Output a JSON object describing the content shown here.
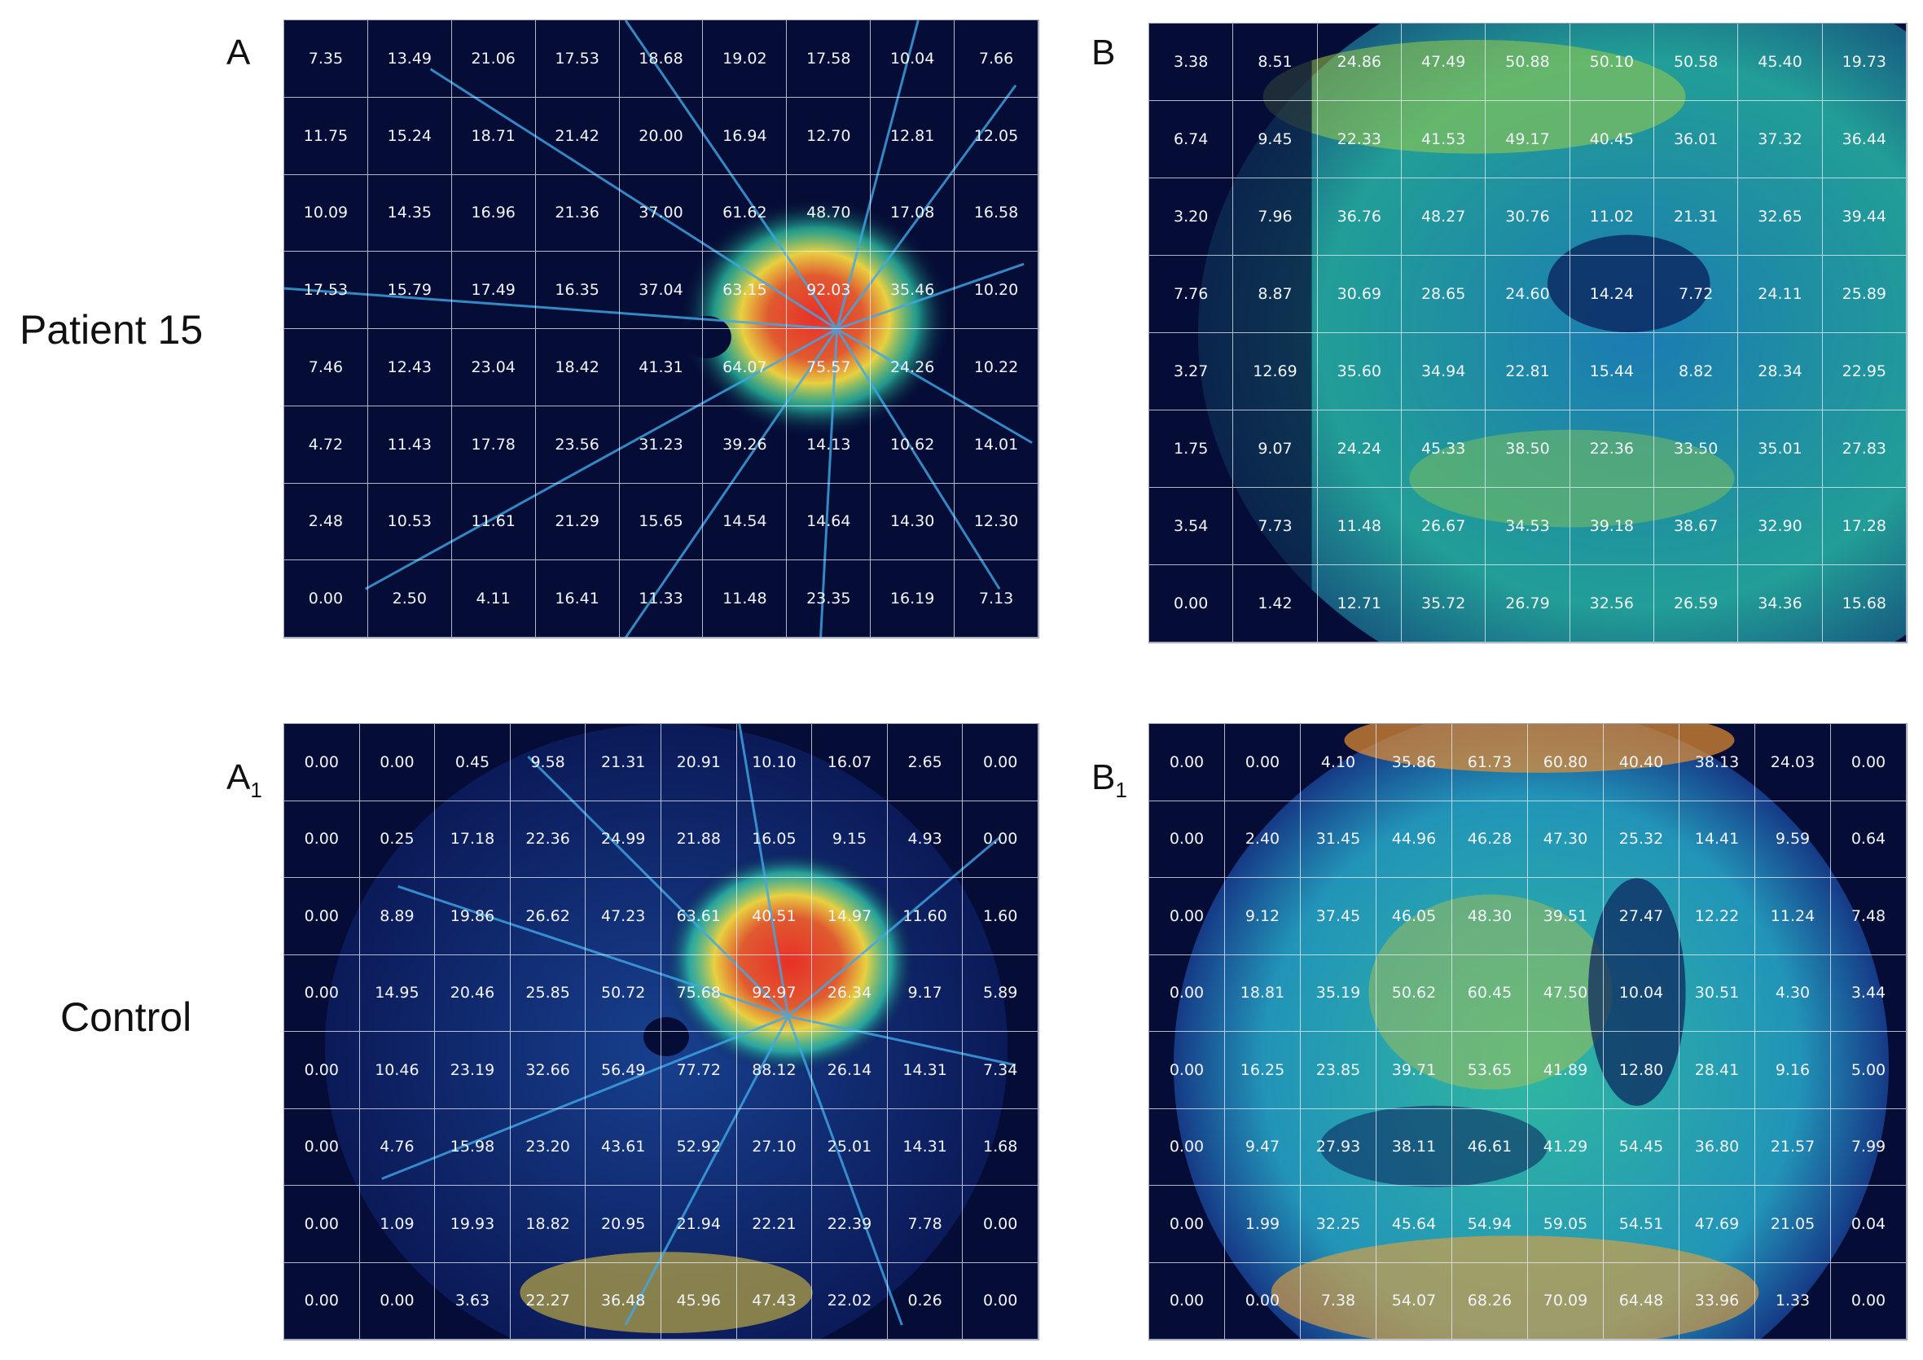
{
  "labels": {
    "row1": "Patient 15",
    "row2": "Control",
    "panel_a": "A",
    "panel_b": "B",
    "panel_a1": "A",
    "panel_a1_sub": "1",
    "panel_b1": "B",
    "panel_b1_sub": "1"
  },
  "colors": {
    "background": "#050d36",
    "vessel_low": "#1e64c8",
    "vessel_mid": "#2fd6b0",
    "vessel_high": "#f0e040",
    "vessel_peak": "#e83028"
  },
  "chart_data": [
    {
      "type": "heatmap",
      "panel": "A",
      "rows": 8,
      "cols": 9,
      "values": [
        [
          "7.35",
          "13.49",
          "21.06",
          "17.53",
          "18.68",
          "19.02",
          "17.58",
          "10.04",
          "7.66"
        ],
        [
          "11.75",
          "15.24",
          "18.71",
          "21.42",
          "20.00",
          "16.94",
          "12.70",
          "12.81",
          "12.05"
        ],
        [
          "10.09",
          "14.35",
          "16.96",
          "21.36",
          "37.00",
          "61.62",
          "48.70",
          "17.08",
          "16.58"
        ],
        [
          "17.53",
          "15.79",
          "17.49",
          "16.35",
          "37.04",
          "63.15",
          "92.03",
          "35.46",
          "10.20"
        ],
        [
          "7.46",
          "12.43",
          "23.04",
          "18.42",
          "41.31",
          "64.07",
          "75.57",
          "24.26",
          "10.22"
        ],
        [
          "4.72",
          "11.43",
          "17.78",
          "23.56",
          "31.23",
          "39.26",
          "14.13",
          "10.62",
          "14.01"
        ],
        [
          "2.48",
          "10.53",
          "11.61",
          "21.29",
          "15.65",
          "14.54",
          "14.64",
          "14.30",
          "12.30"
        ],
        [
          "0.00",
          "2.50",
          "4.11",
          "16.41",
          "11.33",
          "11.48",
          "23.35",
          "16.19",
          "7.13"
        ]
      ]
    },
    {
      "type": "heatmap",
      "panel": "B",
      "rows": 8,
      "cols": 9,
      "values": [
        [
          "3.38",
          "8.51",
          "24.86",
          "47.49",
          "50.88",
          "50.10",
          "50.58",
          "45.40",
          "19.73"
        ],
        [
          "6.74",
          "9.45",
          "22.33",
          "41.53",
          "49.17",
          "40.45",
          "36.01",
          "37.32",
          "36.44"
        ],
        [
          "3.20",
          "7.96",
          "36.76",
          "48.27",
          "30.76",
          "11.02",
          "21.31",
          "32.65",
          "39.44"
        ],
        [
          "7.76",
          "8.87",
          "30.69",
          "28.65",
          "24.60",
          "14.24",
          "7.72",
          "24.11",
          "25.89"
        ],
        [
          "3.27",
          "12.69",
          "35.60",
          "34.94",
          "22.81",
          "15.44",
          "8.82",
          "28.34",
          "22.95"
        ],
        [
          "1.75",
          "9.07",
          "24.24",
          "45.33",
          "38.50",
          "22.36",
          "33.50",
          "35.01",
          "27.83"
        ],
        [
          "3.54",
          "7.73",
          "11.48",
          "26.67",
          "34.53",
          "39.18",
          "38.67",
          "32.90",
          "17.28"
        ],
        [
          "0.00",
          "1.42",
          "12.71",
          "35.72",
          "26.79",
          "32.56",
          "26.59",
          "34.36",
          "15.68"
        ]
      ]
    },
    {
      "type": "heatmap",
      "panel": "A1",
      "rows": 8,
      "cols": 10,
      "values": [
        [
          "0.00",
          "0.00",
          "0.45",
          "9.58",
          "21.31",
          "20.91",
          "10.10",
          "16.07",
          "2.65",
          "0.00"
        ],
        [
          "0.00",
          "0.25",
          "17.18",
          "22.36",
          "24.99",
          "21.88",
          "16.05",
          "9.15",
          "4.93",
          "0.00"
        ],
        [
          "0.00",
          "8.89",
          "19.86",
          "26.62",
          "47.23",
          "63.61",
          "40.51",
          "14.97",
          "11.60",
          "1.60"
        ],
        [
          "0.00",
          "14.95",
          "20.46",
          "25.85",
          "50.72",
          "75.68",
          "92.97",
          "26.34",
          "9.17",
          "5.89"
        ],
        [
          "0.00",
          "10.46",
          "23.19",
          "32.66",
          "56.49",
          "77.72",
          "88.12",
          "26.14",
          "14.31",
          "7.34"
        ],
        [
          "0.00",
          "4.76",
          "15.98",
          "23.20",
          "43.61",
          "52.92",
          "27.10",
          "25.01",
          "14.31",
          "1.68"
        ],
        [
          "0.00",
          "1.09",
          "19.93",
          "18.82",
          "20.95",
          "21.94",
          "22.21",
          "22.39",
          "7.78",
          "0.00"
        ],
        [
          "0.00",
          "0.00",
          "3.63",
          "22.27",
          "36.48",
          "45.96",
          "47.43",
          "22.02",
          "0.26",
          "0.00"
        ]
      ]
    },
    {
      "type": "heatmap",
      "panel": "B1",
      "rows": 8,
      "cols": 10,
      "values": [
        [
          "0.00",
          "0.00",
          "4.10",
          "35.86",
          "61.73",
          "60.80",
          "40.40",
          "38.13",
          "24.03",
          "0.00"
        ],
        [
          "0.00",
          "2.40",
          "31.45",
          "44.96",
          "46.28",
          "47.30",
          "25.32",
          "14.41",
          "9.59",
          "0.64"
        ],
        [
          "0.00",
          "9.12",
          "37.45",
          "46.05",
          "48.30",
          "39.51",
          "27.47",
          "12.22",
          "11.24",
          "7.48"
        ],
        [
          "0.00",
          "18.81",
          "35.19",
          "50.62",
          "60.45",
          "47.50",
          "10.04",
          "30.51",
          "4.30",
          "3.44"
        ],
        [
          "0.00",
          "16.25",
          "23.85",
          "39.71",
          "53.65",
          "41.89",
          "12.80",
          "28.41",
          "9.16",
          "5.00"
        ],
        [
          "0.00",
          "9.47",
          "27.93",
          "38.11",
          "46.61",
          "41.29",
          "54.45",
          "36.80",
          "21.57",
          "7.99"
        ],
        [
          "0.00",
          "1.99",
          "32.25",
          "45.64",
          "54.94",
          "59.05",
          "54.51",
          "47.69",
          "21.05",
          "0.04"
        ],
        [
          "0.00",
          "0.00",
          "7.38",
          "54.07",
          "68.26",
          "70.09",
          "64.48",
          "33.96",
          "1.33",
          "0.00"
        ]
      ]
    }
  ]
}
